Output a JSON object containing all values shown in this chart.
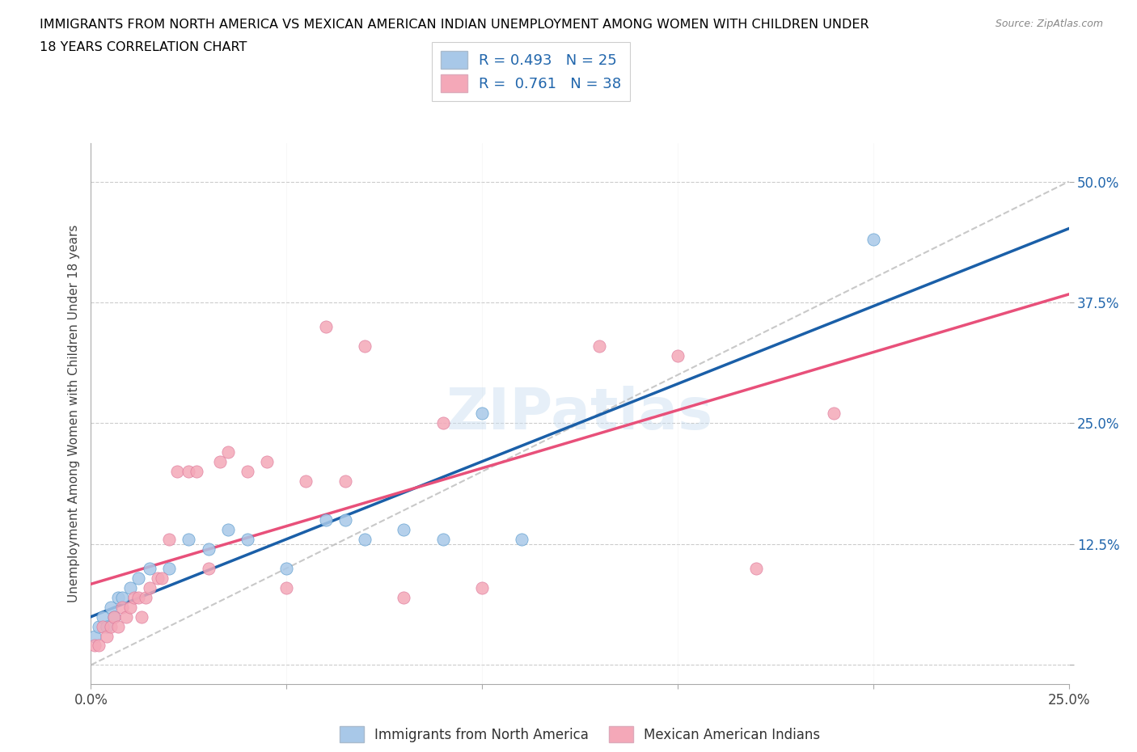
{
  "title_line1": "IMMIGRANTS FROM NORTH AMERICA VS MEXICAN AMERICAN INDIAN UNEMPLOYMENT AMONG WOMEN WITH CHILDREN UNDER",
  "title_line2": "18 YEARS CORRELATION CHART",
  "source": "Source: ZipAtlas.com",
  "ylabel": "Unemployment Among Women with Children Under 18 years",
  "xlim": [
    0.0,
    0.25
  ],
  "ylim": [
    -0.02,
    0.54
  ],
  "xticks": [
    0.0,
    0.05,
    0.1,
    0.15,
    0.2,
    0.25
  ],
  "xtick_labels": [
    "0.0%",
    "",
    "",
    "",
    "",
    "25.0%"
  ],
  "yticks": [
    0.0,
    0.125,
    0.25,
    0.375,
    0.5
  ],
  "ytick_labels": [
    "",
    "12.5%",
    "25.0%",
    "37.5%",
    "50.0%"
  ],
  "watermark": "ZIPatlas",
  "color_blue": "#a8c8e8",
  "color_pink": "#f4a8b8",
  "color_blue_line": "#1a5fa8",
  "color_pink_line": "#e8507a",
  "color_dashed": "#bbbbbb",
  "R_blue": 0.493,
  "R_pink": 0.761,
  "N_blue": 25,
  "N_pink": 38,
  "blue_scatter_x": [
    0.001,
    0.002,
    0.003,
    0.004,
    0.005,
    0.006,
    0.007,
    0.008,
    0.01,
    0.012,
    0.015,
    0.02,
    0.025,
    0.03,
    0.035,
    0.04,
    0.05,
    0.06,
    0.065,
    0.07,
    0.08,
    0.09,
    0.1,
    0.11,
    0.2
  ],
  "blue_scatter_y": [
    0.03,
    0.04,
    0.05,
    0.04,
    0.06,
    0.05,
    0.07,
    0.07,
    0.08,
    0.09,
    0.1,
    0.1,
    0.13,
    0.12,
    0.14,
    0.13,
    0.1,
    0.15,
    0.15,
    0.13,
    0.14,
    0.13,
    0.26,
    0.13,
    0.44
  ],
  "pink_scatter_x": [
    0.001,
    0.002,
    0.003,
    0.004,
    0.005,
    0.006,
    0.007,
    0.008,
    0.009,
    0.01,
    0.011,
    0.012,
    0.013,
    0.014,
    0.015,
    0.017,
    0.018,
    0.02,
    0.022,
    0.025,
    0.027,
    0.03,
    0.033,
    0.035,
    0.04,
    0.045,
    0.05,
    0.055,
    0.06,
    0.065,
    0.07,
    0.08,
    0.09,
    0.1,
    0.13,
    0.15,
    0.17,
    0.19
  ],
  "pink_scatter_y": [
    0.02,
    0.02,
    0.04,
    0.03,
    0.04,
    0.05,
    0.04,
    0.06,
    0.05,
    0.06,
    0.07,
    0.07,
    0.05,
    0.07,
    0.08,
    0.09,
    0.09,
    0.13,
    0.2,
    0.2,
    0.2,
    0.1,
    0.21,
    0.22,
    0.2,
    0.21,
    0.08,
    0.19,
    0.35,
    0.19,
    0.33,
    0.07,
    0.25,
    0.08,
    0.33,
    0.32,
    0.1,
    0.26
  ],
  "legend_bottom": [
    "Immigrants from North America",
    "Mexican American Indians"
  ]
}
